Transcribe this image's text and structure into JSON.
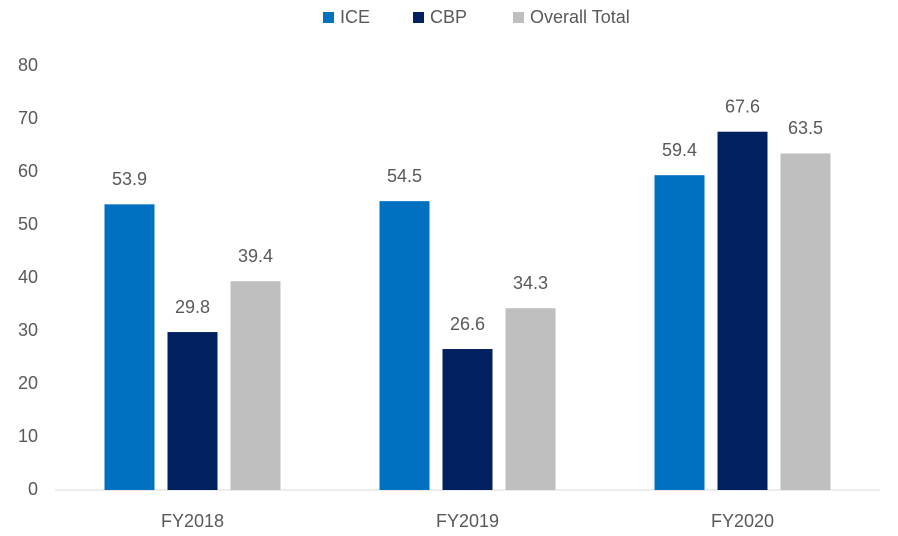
{
  "chart_data": {
    "type": "bar",
    "categories": [
      "FY2018",
      "FY2019",
      "FY2020"
    ],
    "series": [
      {
        "name": "ICE",
        "color": "#0070c0",
        "values": [
          53.9,
          54.5,
          59.4
        ]
      },
      {
        "name": "CBP",
        "color": "#002060",
        "values": [
          29.8,
          26.6,
          67.6
        ]
      },
      {
        "name": "Overall Total",
        "color": "#bfbfbf",
        "values": [
          39.4,
          34.3,
          63.5
        ]
      }
    ],
    "ylim": [
      0,
      80
    ],
    "yticks": [
      0,
      10,
      20,
      30,
      40,
      50,
      60,
      70,
      80
    ],
    "grid": false,
    "legend": "top"
  }
}
